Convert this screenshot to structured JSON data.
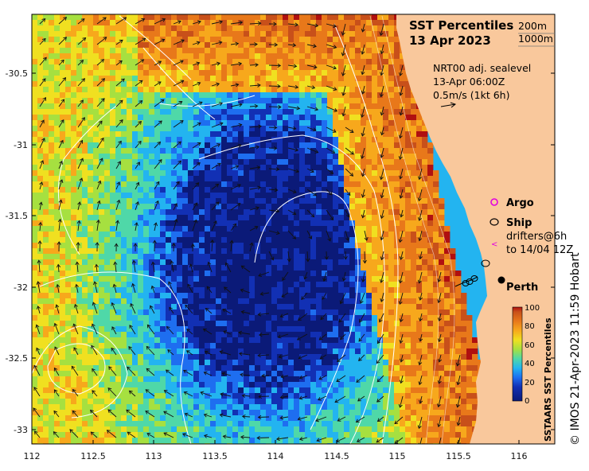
{
  "title": {
    "line1": "SST Percentiles",
    "line2": "13 Apr 2023"
  },
  "isobaths": {
    "shallow": "200m",
    "deep": "1000m"
  },
  "current_info": {
    "line1": "NRT00 adj. sealevel",
    "line2": "13-Apr 06:00Z",
    "line3": "0.5m/s (1kt 6h)"
  },
  "legend": {
    "argo": "Argo",
    "ship": "Ship",
    "drifters_line1": "drifters@6h",
    "drifters_line2": "to 14/04 12Z"
  },
  "place": {
    "perth": "Perth"
  },
  "colorbar": {
    "title": "SSTAARS SST Percentiles",
    "ticks": [
      "0",
      "20",
      "40",
      "60",
      "80",
      "100"
    ]
  },
  "credit": "© IMOS 21-Apr-2023 11:59 Hobart",
  "axes": {
    "x_ticks": [
      "112",
      "112.5",
      "113",
      "113.5",
      "114",
      "114.5",
      "115",
      "115.5",
      "116"
    ],
    "y_ticks": [
      "-30.5",
      "-31",
      "-31.5",
      "-32",
      "-32.5",
      "-33"
    ],
    "lon_range": [
      112,
      116.3
    ],
    "lat_range": [
      -33.1,
      -30.1
    ]
  },
  "colors": {
    "land": "#f9c89c",
    "p0": "#0b1a78",
    "p10": "#1230b4",
    "p20": "#1e6ef0",
    "p30": "#23b4f0",
    "p45": "#4fd8a8",
    "p55": "#a6e040",
    "p65": "#f0e020",
    "p75": "#f7a81c",
    "p85": "#e8781a",
    "p95": "#c8501a",
    "p100": "#b01010"
  }
}
